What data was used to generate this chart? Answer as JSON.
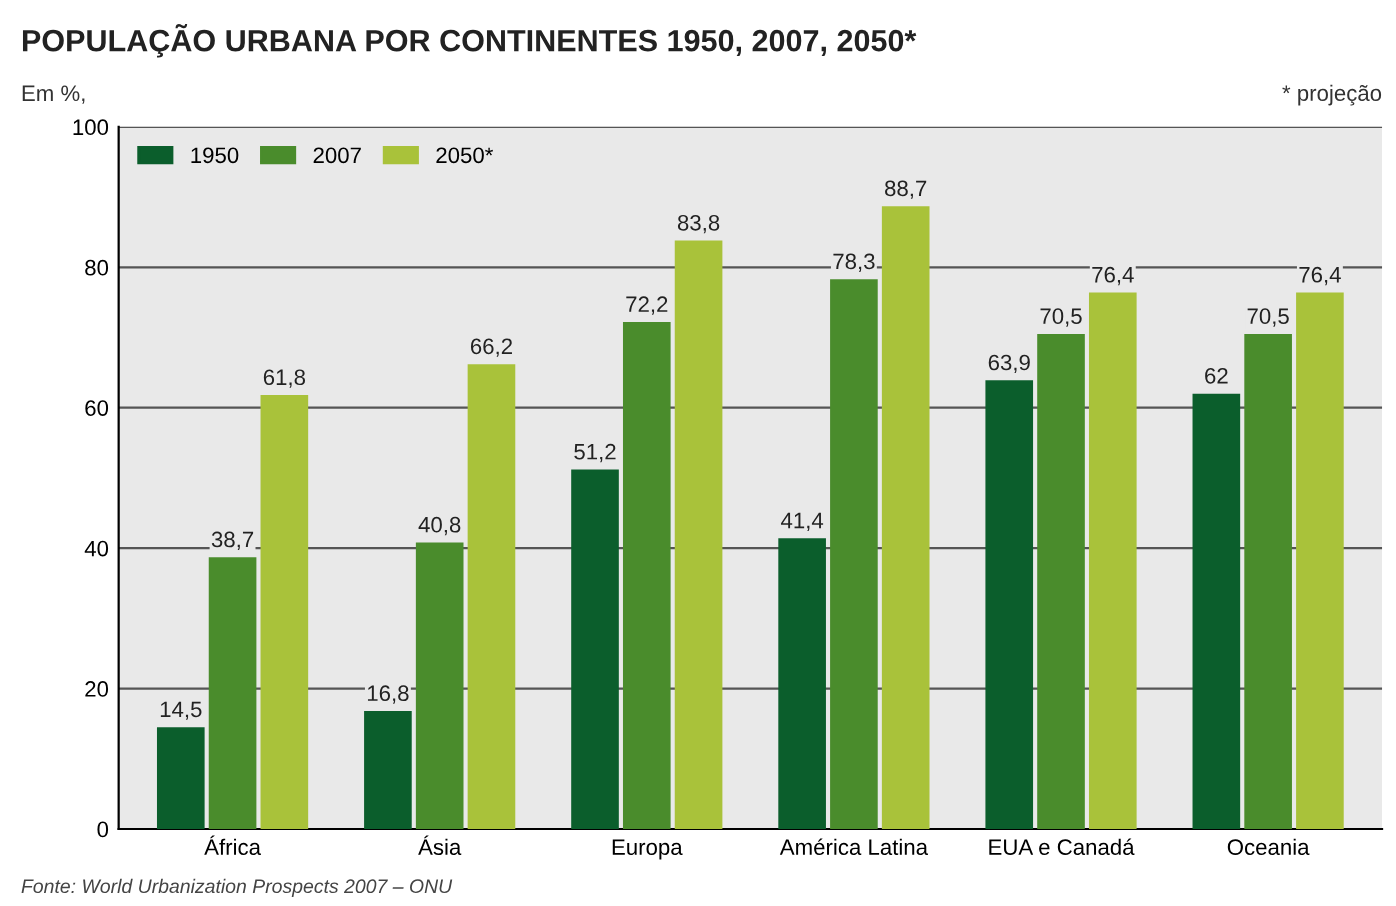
{
  "chart_data": {
    "type": "bar",
    "title": "POPULAÇÃO URBANA POR CONTINENTES 1950, 2007, 2050*",
    "ylabel": "Em %,",
    "annotations": [
      "* projeção",
      "Fonte: World Urbanization Prospects 2007 – ONU"
    ],
    "categories": [
      "África",
      "Ásia",
      "Europa",
      "América Latina",
      "EUA e Canadá",
      "Oceania"
    ],
    "series": [
      {
        "name": "1950",
        "color": "#0b5e2c",
        "values": [
          14.5,
          16.8,
          51.2,
          41.4,
          63.9,
          62
        ],
        "value_labels": [
          "14,5",
          "16,8",
          "51,2",
          "41,4",
          "63,9",
          "62"
        ]
      },
      {
        "name": "2007",
        "color": "#4a8c2c",
        "values": [
          38.7,
          40.8,
          72.2,
          78.3,
          70.5,
          70.5
        ],
        "value_labels": [
          "38,7",
          "40,8",
          "72,2",
          "78,3",
          "70,5",
          "70,5"
        ]
      },
      {
        "name": "2050*",
        "color": "#a9c23a",
        "values": [
          61.8,
          66.2,
          83.8,
          88.7,
          76.4,
          76.4
        ],
        "value_labels": [
          "61,8",
          "66,2",
          "83,8",
          "88,7",
          "76,4",
          "76,4"
        ]
      }
    ],
    "ylim": [
      0,
      100
    ],
    "yticks": [
      0,
      20,
      40,
      60,
      80,
      100
    ],
    "grid": "y",
    "legend": "top left"
  }
}
